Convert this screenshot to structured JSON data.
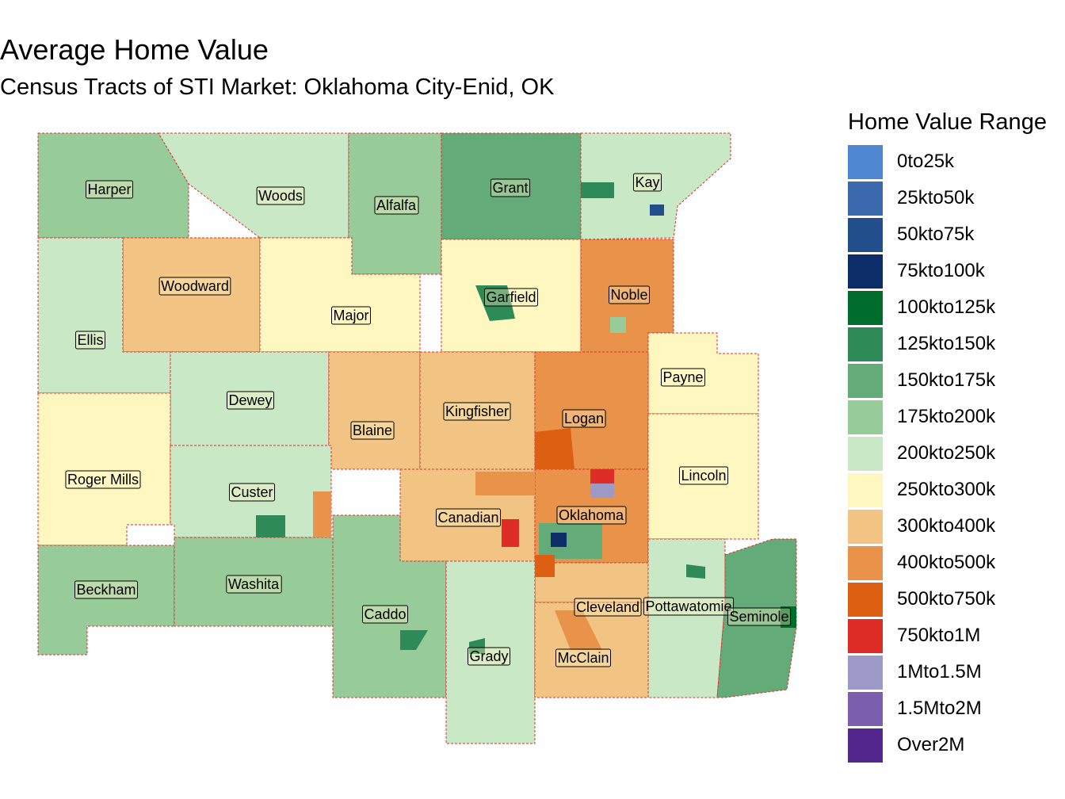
{
  "title": "Average Home Value",
  "subtitle": "Census Tracts of STI Market: Oklahoma City-Enid, OK",
  "legend": {
    "title": "Home Value Range",
    "items": [
      {
        "label": "0to25k",
        "color": "#4f86d0"
      },
      {
        "label": "25kto50k",
        "color": "#3a6aad"
      },
      {
        "label": "50kto75k",
        "color": "#234e8c"
      },
      {
        "label": "75kto100k",
        "color": "#0c2d68"
      },
      {
        "label": "100kto125k",
        "color": "#006d2c"
      },
      {
        "label": "125kto150k",
        "color": "#2e8b57"
      },
      {
        "label": "150kto175k",
        "color": "#63ab78"
      },
      {
        "label": "175kto200k",
        "color": "#98cb9a"
      },
      {
        "label": "200kto250k",
        "color": "#c9e8c5"
      },
      {
        "label": "250kto300k",
        "color": "#fff7c0"
      },
      {
        "label": "300kto400k",
        "color": "#f2c483"
      },
      {
        "label": "400kto500k",
        "color": "#e8924a"
      },
      {
        "label": "500kto750k",
        "color": "#dd5f12"
      },
      {
        "label": "750kto1M",
        "color": "#de2d26"
      },
      {
        "label": "1Mto1.5M",
        "color": "#9e9ac8"
      },
      {
        "label": "1.5Mto2M",
        "color": "#7b5fae"
      },
      {
        "label": "Over2M",
        "color": "#54278f"
      }
    ]
  },
  "counties": [
    {
      "name": "Harper",
      "range": "175kto200k"
    },
    {
      "name": "Woods",
      "range": "200kto250k"
    },
    {
      "name": "Alfalfa",
      "range": "175kto200k"
    },
    {
      "name": "Grant",
      "range": "150kto175k"
    },
    {
      "name": "Kay",
      "range": "200kto250k"
    },
    {
      "name": "Woodward",
      "range": "300kto400k"
    },
    {
      "name": "Major",
      "range": "250kto300k"
    },
    {
      "name": "Garfield",
      "range": "250kto300k"
    },
    {
      "name": "Noble",
      "range": "400kto500k"
    },
    {
      "name": "Ellis",
      "range": "200kto250k"
    },
    {
      "name": "Payne",
      "range": "250kto300k"
    },
    {
      "name": "Dewey",
      "range": "200kto250k"
    },
    {
      "name": "Blaine",
      "range": "300kto400k"
    },
    {
      "name": "Kingfisher",
      "range": "300kto400k"
    },
    {
      "name": "Logan",
      "range": "400kto500k"
    },
    {
      "name": "Roger Mills",
      "range": "250kto300k"
    },
    {
      "name": "Custer",
      "range": "200kto250k"
    },
    {
      "name": "Lincoln",
      "range": "250kto300k"
    },
    {
      "name": "Canadian",
      "range": "300kto400k"
    },
    {
      "name": "Oklahoma",
      "range": "400kto500k"
    },
    {
      "name": "Beckham",
      "range": "175kto200k"
    },
    {
      "name": "Washita",
      "range": "175kto200k"
    },
    {
      "name": "Caddo",
      "range": "175kto200k"
    },
    {
      "name": "Cleveland",
      "range": "300kto400k"
    },
    {
      "name": "Pottawatomie",
      "range": "200kto250k"
    },
    {
      "name": "Seminole",
      "range": "150kto175k"
    },
    {
      "name": "Grady",
      "range": "200kto250k"
    },
    {
      "name": "McClain",
      "range": "300kto400k"
    }
  ]
}
